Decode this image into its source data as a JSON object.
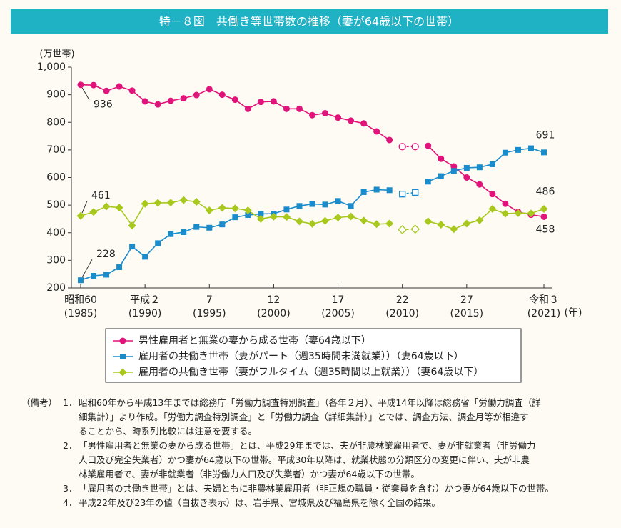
{
  "chart_data": {
    "type": "line",
    "title": "特－８図　共働き等世帯数の推移（妻が64歳以下の世帯）",
    "y_label": "(万世帯)",
    "x_unit": "(年)",
    "x": [
      1985,
      1986,
      1987,
      1988,
      1989,
      1990,
      1991,
      1992,
      1993,
      1994,
      1995,
      1996,
      1997,
      1998,
      1999,
      2000,
      2001,
      2002,
      2003,
      2004,
      2005,
      2006,
      2007,
      2008,
      2009,
      2010,
      2011,
      2012,
      2013,
      2014,
      2015,
      2016,
      2017,
      2018,
      2019,
      2020,
      2021
    ],
    "xlim": [
      1985,
      2021
    ],
    "xticks": [
      {
        "value": 1985,
        "label": [
          "昭和60",
          "(1985)"
        ]
      },
      {
        "value": 1990,
        "label": [
          "平成２",
          "(1990)"
        ]
      },
      {
        "value": 1995,
        "label": [
          "7",
          "(1995)"
        ]
      },
      {
        "value": 2000,
        "label": [
          "12",
          "(2000)"
        ]
      },
      {
        "value": 2005,
        "label": [
          "17",
          "(2005)"
        ]
      },
      {
        "value": 2010,
        "label": [
          "22",
          "(2010)"
        ]
      },
      {
        "value": 2015,
        "label": [
          "27",
          "(2015)"
        ]
      },
      {
        "value": 2021,
        "label": [
          "令和３",
          "(2021)"
        ]
      }
    ],
    "ylim": [
      200,
      1000
    ],
    "yticks": [
      200,
      300,
      400,
      500,
      600,
      700,
      800,
      900,
      {
        "value": 1000,
        "label": "1,000"
      }
    ],
    "series": [
      {
        "name": "男性雇用者と無業の妻から成る世帯（妻64歳以下）",
        "color": "#e0147a",
        "marker": "circle",
        "values": [
          936,
          935,
          914,
          930,
          915,
          876,
          865,
          878,
          887,
          899,
          920,
          900,
          882,
          849,
          874,
          876,
          849,
          849,
          826,
          833,
          817,
          806,
          796,
          767,
          736,
          null,
          null,
          715,
          668,
          640,
          600,
          575,
          540,
          505,
          475,
          465,
          458
        ],
        "hollow_values": [
          null,
          null,
          null,
          null,
          null,
          null,
          null,
          null,
          null,
          null,
          null,
          null,
          null,
          null,
          null,
          null,
          null,
          null,
          null,
          null,
          null,
          null,
          null,
          null,
          null,
          712,
          712,
          null,
          null,
          null,
          null,
          null,
          null,
          null,
          null,
          null,
          null
        ]
      },
      {
        "name": "雇用者の共働き世帯（妻がパート（週35時間未満就業））（妻64歳以下）",
        "color": "#1a8ccc",
        "marker": "square",
        "values": [
          228,
          244,
          248,
          275,
          350,
          313,
          362,
          395,
          402,
          421,
          418,
          430,
          456,
          464,
          468,
          469,
          484,
          497,
          504,
          502,
          515,
          497,
          547,
          556,
          554,
          null,
          null,
          585,
          605,
          624,
          635,
          637,
          648,
          690,
          700,
          706,
          691
        ],
        "hollow_values": [
          null,
          null,
          null,
          null,
          null,
          null,
          null,
          null,
          null,
          null,
          null,
          null,
          null,
          null,
          null,
          null,
          null,
          null,
          null,
          null,
          null,
          null,
          null,
          null,
          null,
          540,
          546,
          null,
          null,
          null,
          null,
          null,
          null,
          null,
          null,
          null,
          null
        ]
      },
      {
        "name": "雇用者の共働き世帯（妻がフルタイム（週35時間以上就業））（妻64歳以下）",
        "color": "#a8c81e",
        "marker": "diamond",
        "values": [
          461,
          475,
          495,
          491,
          426,
          505,
          508,
          509,
          518,
          512,
          481,
          490,
          488,
          481,
          450,
          458,
          457,
          441,
          432,
          443,
          455,
          459,
          444,
          431,
          433,
          null,
          null,
          441,
          429,
          413,
          433,
          445,
          486,
          469,
          471,
          470,
          486
        ],
        "hollow_values": [
          null,
          null,
          null,
          null,
          null,
          null,
          null,
          null,
          null,
          null,
          null,
          null,
          null,
          null,
          null,
          null,
          null,
          null,
          null,
          null,
          null,
          null,
          null,
          null,
          null,
          411,
          413,
          null,
          null,
          null,
          null,
          null,
          null,
          null,
          null,
          null,
          null
        ]
      }
    ]
  },
  "notes": {
    "heading": "（備考）",
    "items": [
      {
        "num": "1．",
        "lines": [
          "昭和60年から平成13年までは総務庁「労働力調査特別調査」（各年２月）、平成14年以降は総務省「労働力調査（詳",
          "細集計）」より作成。「労働力調査特別調査」と「労働力調査（詳細集計）」とでは、調査方法、調査月等が相違す",
          "ることから、時系列比較には注意を要する。"
        ]
      },
      {
        "num": "2．",
        "lines": [
          "「男性雇用者と無業の妻から成る世帯」とは、平成29年までは、夫が非農林業雇用者で、妻が非就業者（非労働力",
          "人口及び完全失業者）かつ妻が64歳以下の世帯。平成30年以降は、就業状態の分類区分の変更に伴い、夫が非農",
          "林業雇用者で、妻が非就業者（非労働力人口及び失業者）かつ妻が64歳以下の世帯。"
        ]
      },
      {
        "num": "3．",
        "lines": [
          "「雇用者の共働き世帯」とは、夫婦ともに非農林業雇用者（非正規の職員・従業員を含む）かつ妻が64歳以下の世帯。"
        ]
      },
      {
        "num": "4．",
        "lines": [
          "平成22年及び23年の値（白抜き表示）は、岩手県、宮城県及び福島県を除く全国の結果。"
        ]
      }
    ]
  }
}
